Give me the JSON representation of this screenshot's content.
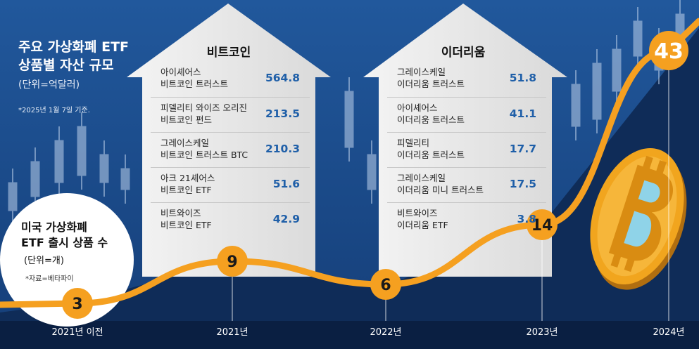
{
  "panel": {
    "title_line1": "주요 가상화폐 ETF",
    "title_line2": "상품별 자산 규모",
    "unit": "(단위=억달러)",
    "note": "*2025년 1월 7일 기준."
  },
  "circle_legend": {
    "line1": "미국 가상화폐",
    "line2": "ETF 출시 상품 수",
    "unit": "(단위=개)",
    "source": "*자료=베타파이"
  },
  "chart_data": [
    {
      "type": "line",
      "title": "미국 가상화폐 ETF 출시 상품 수",
      "unit": "(단위=개)",
      "categories": [
        "2021년 이전",
        "2021년",
        "2022년",
        "2023년",
        "2024년"
      ],
      "values": [
        3,
        9,
        6,
        14,
        43
      ],
      "series_color": "#f5a020"
    },
    {
      "type": "table",
      "title": "비트코인",
      "unit": "억달러",
      "rows": [
        {
          "name": "아이셰어스\n비트코인 트러스트",
          "value": "564.8"
        },
        {
          "name": "피델리티 와이즈 오리진\n비트코인 펀드",
          "value": "213.5"
        },
        {
          "name": "그레이스케일\n비트코인 트러스트 BTC",
          "value": "210.3"
        },
        {
          "name": "아크 21셰어스\n비트코인 ETF",
          "value": "51.6"
        },
        {
          "name": "비트와이즈\n비트코인 ETF",
          "value": "42.9"
        }
      ]
    },
    {
      "type": "table",
      "title": "이더리움",
      "unit": "억달러",
      "rows": [
        {
          "name": "그레이스케일\n이더리움 트러스트",
          "value": "51.8"
        },
        {
          "name": "아이셰어스\n이더리움 트러스트",
          "value": "41.1"
        },
        {
          "name": "피델리티\n이더리움 트러스트",
          "value": "17.7"
        },
        {
          "name": "그레이스케일\n이더리움 미니 트러스트",
          "value": "17.5"
        },
        {
          "name": "비트와이즈\n이더리움 ETF",
          "value": "3.8"
        }
      ]
    }
  ],
  "colors": {
    "background": "#1b4a8a",
    "background_dark": "#102f5e",
    "accent": "#f5a020",
    "value_text": "#1f5fa8",
    "house": "#eeeeee"
  }
}
